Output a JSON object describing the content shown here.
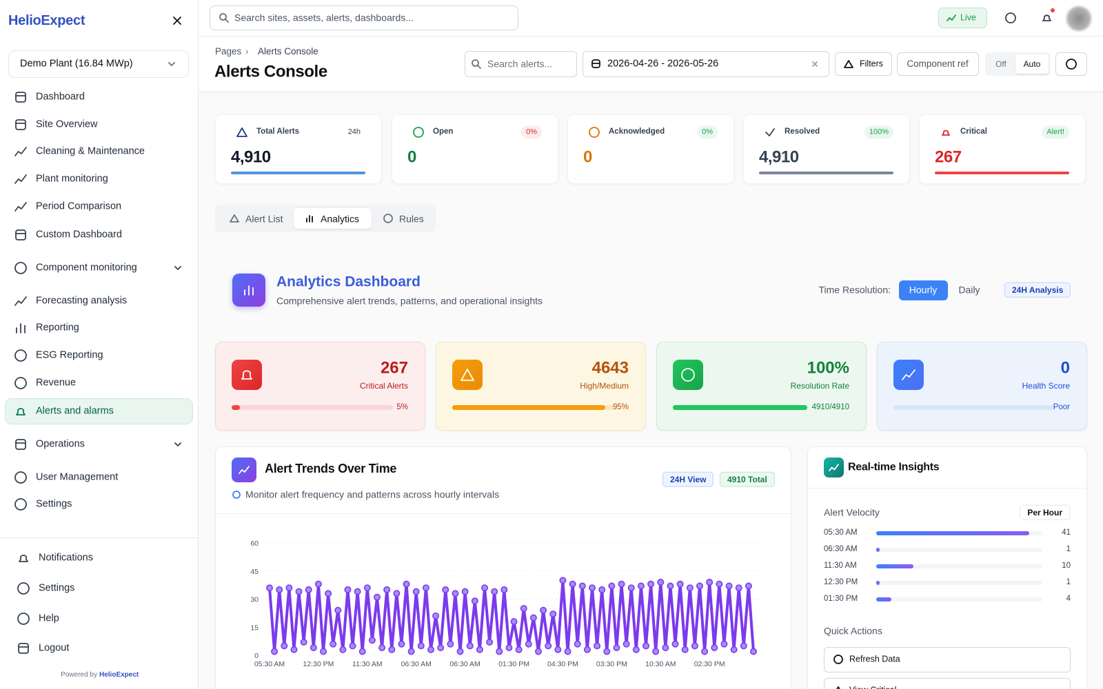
{
  "sidebar": {
    "brand": "HelioExpect",
    "plant": "Demo Plant (16.84 MWp)",
    "nav": [
      "Dashboard",
      "Site Overview",
      "Cleaning & Maintenance",
      "Plant monitoring",
      "Period Comparison",
      "Custom Dashboard",
      "Component monitoring",
      "Forecasting analysis",
      "Reporting",
      "ESG Reporting",
      "Revenue",
      "Alerts and alarms",
      "Operations",
      "User Management",
      "Settings"
    ],
    "footer_nav": [
      "Notifications",
      "Settings",
      "Help",
      "Logout"
    ],
    "powered_by": "Powered by",
    "powered_brand": "HelioExpect"
  },
  "topbar": {
    "search_placeholder": "Search sites, assets, alerts, dashboards...",
    "live": "Live"
  },
  "page_header": {
    "breadcrumb": [
      "Pages",
      "Alerts Console"
    ],
    "title": "Alerts Console",
    "search_alerts": "Search alerts...",
    "date_range": "2026-04-26 - 2026-05-26",
    "filters": "Filters",
    "component_ref": "Component ref",
    "toggle": [
      "Off",
      "Auto"
    ]
  },
  "stat_cards": [
    {
      "label": "Total Alerts",
      "badge": "24h",
      "value": "4,910"
    },
    {
      "label": "Open",
      "badge": "0%",
      "value": "0"
    },
    {
      "label": "Acknowledged",
      "badge": "0%",
      "value": "0"
    },
    {
      "label": "Resolved",
      "badge": "100%",
      "value": "4,910"
    },
    {
      "label": "Critical",
      "badge": "Alert!",
      "value": "267"
    }
  ],
  "tabs": [
    "Alert List",
    "Analytics",
    "Rules"
  ],
  "analytics": {
    "title": "Analytics Dashboard",
    "subtitle": "Comprehensive alert trends, patterns, and operational insights",
    "time_resolution_label": "Time Resolution:",
    "resolutions": [
      "Hourly",
      "Daily"
    ],
    "badge": "24H Analysis"
  },
  "kpi_cards": [
    {
      "value": "267",
      "label": "Critical Alerts",
      "bar_label": "5%",
      "progress": 5
    },
    {
      "value": "4643",
      "label": "High/Medium",
      "bar_label": "95%",
      "progress": 95
    },
    {
      "value": "100%",
      "label": "Resolution Rate",
      "bar_label": "4910/4910",
      "progress": 100
    },
    {
      "value": "0",
      "label": "Health Score",
      "bar_label": "Poor",
      "progress": 0
    }
  ],
  "trends": {
    "title": "Alert Trends Over Time",
    "subtitle": "Monitor alert frequency and patterns across hourly intervals",
    "badges": [
      "24H View",
      "4910 Total"
    ]
  },
  "chart_data": {
    "type": "line",
    "color": "#7c3aed",
    "categories": [
      "05:30 AM",
      null,
      null,
      null,
      null,
      null,
      null,
      null,
      null,
      null,
      "12:30 PM",
      null,
      null,
      null,
      null,
      null,
      null,
      null,
      null,
      null,
      "11:30 AM",
      null,
      null,
      null,
      null,
      null,
      null,
      null,
      null,
      null,
      "06:30 AM",
      null,
      null,
      null,
      null,
      null,
      null,
      null,
      null,
      null,
      "06:30 AM",
      null,
      null,
      null,
      null,
      null,
      null,
      null,
      null,
      null,
      "01:30 PM",
      null,
      null,
      null,
      null,
      null,
      null,
      null,
      null,
      null,
      "04:30 PM",
      null,
      null,
      null,
      null,
      null,
      null,
      null,
      null,
      null,
      "03:30 PM",
      null,
      null,
      null,
      null,
      null,
      null,
      null,
      null,
      null,
      "10:30 AM",
      null,
      null,
      null,
      null,
      null,
      null,
      null,
      null,
      null,
      "02:30 PM",
      null,
      null,
      null,
      null,
      null,
      null,
      null,
      null,
      null
    ],
    "values": [
      36,
      2,
      35,
      5,
      36,
      3,
      34,
      7,
      35,
      4,
      38,
      2,
      33,
      6,
      24,
      3,
      35,
      5,
      34,
      2,
      36,
      8,
      31,
      4,
      35,
      3,
      33,
      6,
      38,
      2,
      34,
      5,
      36,
      3,
      21,
      4,
      35,
      6,
      33,
      2,
      34,
      5,
      29,
      3,
      36,
      7,
      34,
      2,
      35,
      4,
      18,
      3,
      25,
      6,
      20,
      2,
      24,
      5,
      22,
      3,
      40,
      2,
      38,
      6,
      37,
      3,
      36,
      5,
      35,
      2,
      37,
      4,
      38,
      6,
      36,
      3,
      37,
      5,
      38,
      2,
      39,
      4,
      37,
      6,
      38,
      3,
      36,
      5,
      37,
      2,
      39,
      4,
      38,
      6,
      37,
      3,
      36,
      5,
      37,
      2
    ],
    "ylim": [
      0,
      60
    ],
    "yticks": [
      0,
      15,
      30,
      45,
      60
    ],
    "grid": true
  },
  "insights": {
    "title": "Real-time Insights",
    "velocity_label": "Alert Velocity",
    "velocity_badge": "Per Hour",
    "velocity": [
      {
        "time": "05:30 AM",
        "value": 41
      },
      {
        "time": "06:30 AM",
        "value": 1
      },
      {
        "time": "11:30 AM",
        "value": 10
      },
      {
        "time": "12:30 PM",
        "value": 1
      },
      {
        "time": "01:30 PM",
        "value": 4
      }
    ],
    "quick_actions_title": "Quick Actions",
    "quick_actions": [
      "Refresh Data",
      "View Critical"
    ]
  }
}
